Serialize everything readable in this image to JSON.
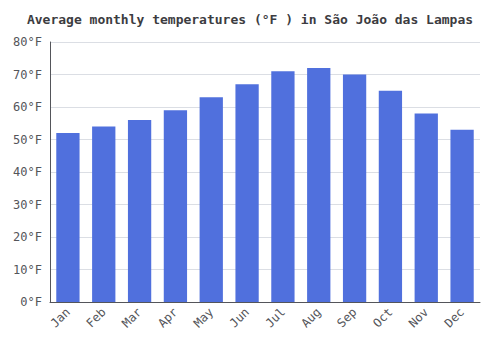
{
  "chart_data": {
    "type": "bar",
    "title": "Average monthly temperatures (°F ) in São João das Lampas",
    "categories": [
      "Jan",
      "Feb",
      "Mar",
      "Apr",
      "May",
      "Jun",
      "Jul",
      "Aug",
      "Sep",
      "Oct",
      "Nov",
      "Dec"
    ],
    "values": [
      52,
      54,
      56,
      59,
      63,
      67,
      71,
      72,
      70,
      65,
      58,
      53
    ],
    "ylim": [
      0,
      80
    ],
    "yticks": [
      {
        "value": 0,
        "label": "0°F"
      },
      {
        "value": 10,
        "label": "10°F"
      },
      {
        "value": 20,
        "label": "20°F"
      },
      {
        "value": 30,
        "label": "30°F"
      },
      {
        "value": 40,
        "label": "40°F"
      },
      {
        "value": 50,
        "label": "50°F"
      },
      {
        "value": 60,
        "label": "60°F"
      },
      {
        "value": 70,
        "label": "70°F"
      },
      {
        "value": 80,
        "label": "80°F"
      }
    ],
    "grid": true
  }
}
